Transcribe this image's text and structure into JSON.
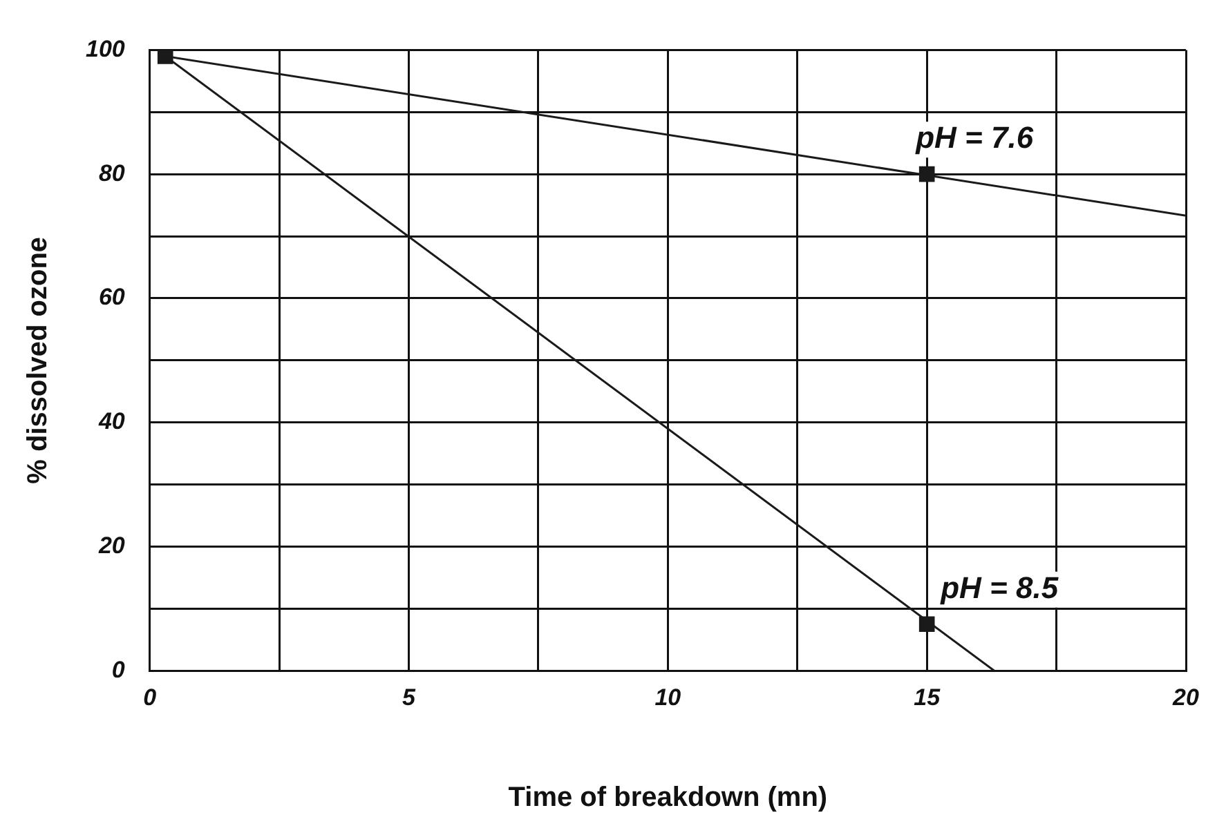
{
  "chart_data": {
    "type": "line",
    "xlabel": "Time of breakdown (mn)",
    "ylabel": "% dissolved ozone",
    "xlim": [
      0,
      20
    ],
    "ylim": [
      0,
      100
    ],
    "xticks": [
      0,
      {
        "value": 2.5,
        "label": null
      },
      5,
      {
        "value": 7.5,
        "label": null
      },
      10,
      {
        "value": 12.5,
        "label": null
      },
      15,
      {
        "value": 17.5,
        "label": null
      },
      20
    ],
    "yticks": [
      0,
      {
        "value": 10,
        "label": null
      },
      20,
      {
        "value": 30,
        "label": null
      },
      40,
      {
        "value": 50,
        "label": null
      },
      60,
      {
        "value": 70,
        "label": null
      },
      80,
      {
        "value": 90,
        "label": null
      },
      100
    ],
    "grid": true,
    "legend": false,
    "series": [
      {
        "type": "line",
        "marker": "none",
        "color": "#1a1a1a",
        "x": [
          0.3,
          20
        ],
        "values": [
          99,
          73.3
        ]
      },
      {
        "type": "line",
        "marker": "none",
        "color": "#1a1a1a",
        "x": [
          0.3,
          16.3
        ],
        "values": [
          99,
          0
        ]
      },
      {
        "type": "scatter",
        "name": "pH = 7.6",
        "marker": "square",
        "color": "#1a1a1a",
        "x": [
          0.3,
          15
        ],
        "values": [
          99,
          80
        ]
      },
      {
        "type": "scatter",
        "name": "pH = 8.5",
        "marker": "square",
        "color": "#1a1a1a",
        "x": [
          15
        ],
        "values": [
          7.5
        ]
      }
    ]
  }
}
